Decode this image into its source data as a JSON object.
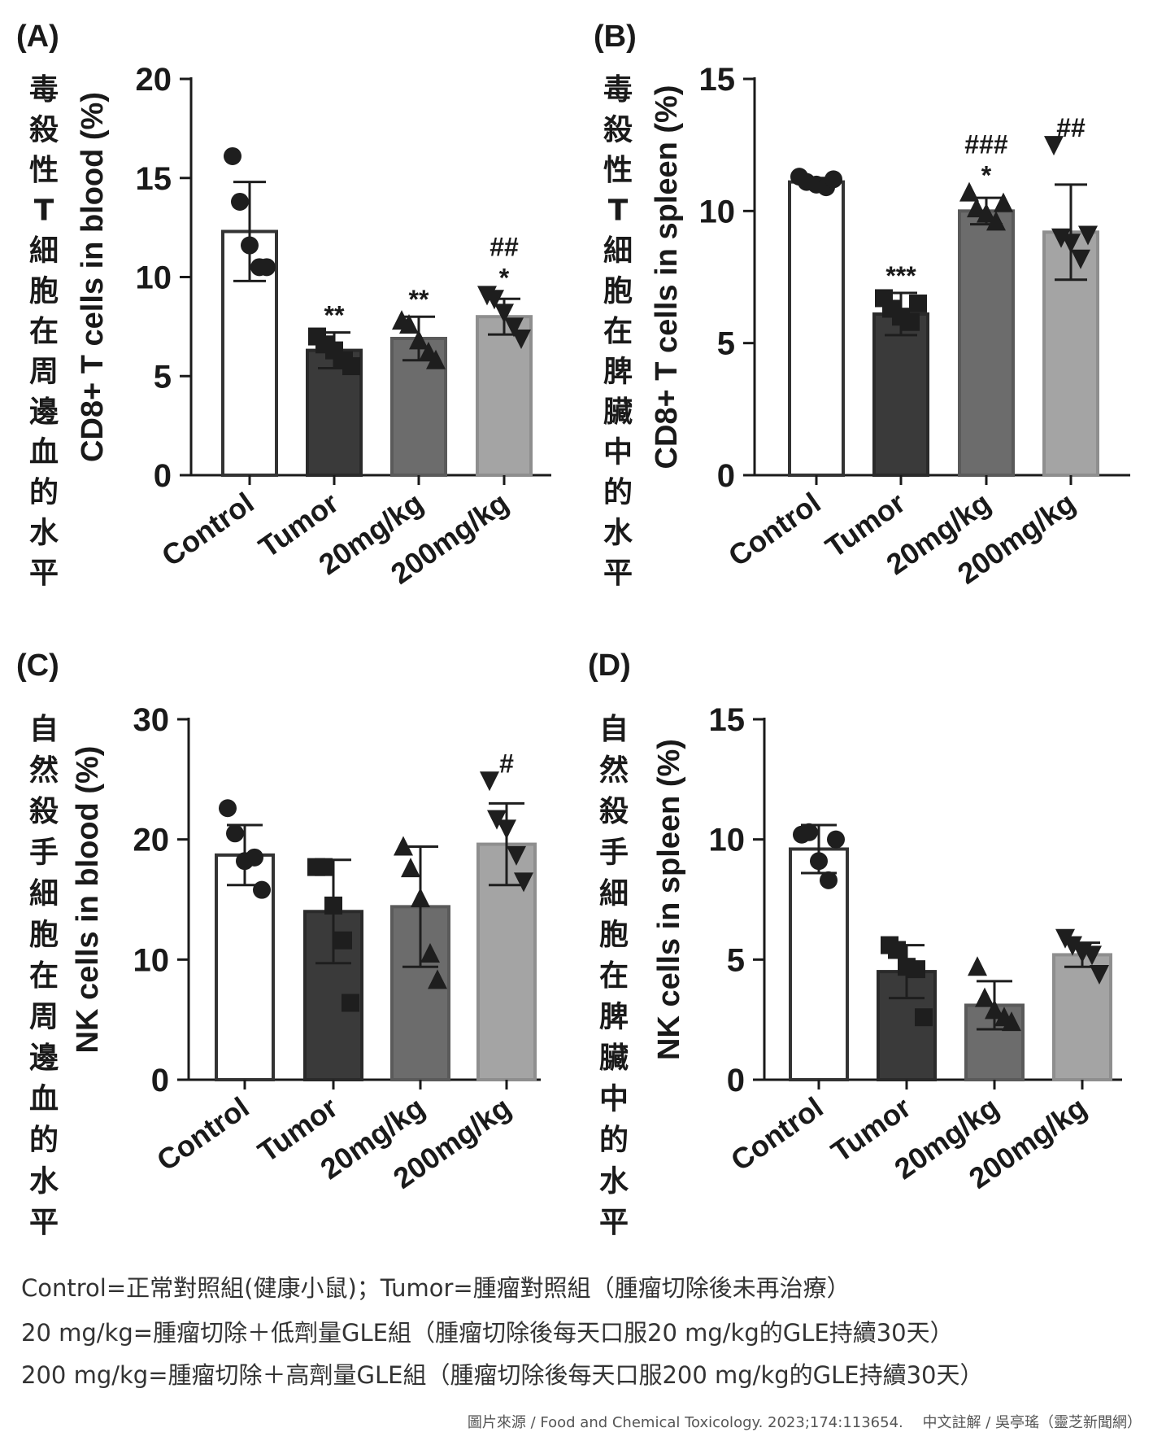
{
  "chart_data": [
    {
      "type": "bar",
      "panel": "(A)",
      "side_caption": "毒殺性T細胞在周邊血的水平",
      "categories": [
        "Control",
        "Tumor",
        "20mg/kg",
        "200mg/kg"
      ],
      "ylabel": "CD8+ T cells in blood (%)",
      "ylim": [
        0,
        20
      ],
      "yticks": [
        0,
        5,
        10,
        15,
        20
      ],
      "values": [
        12.3,
        6.3,
        6.9,
        8.0
      ],
      "errors": [
        2.5,
        0.9,
        1.1,
        0.9
      ],
      "points": [
        [
          16.1,
          13.8,
          11.6,
          10.5,
          10.5
        ],
        [
          7.0,
          6.6,
          6.3,
          5.8,
          5.5
        ],
        [
          7.8,
          7.6,
          6.8,
          6.2,
          5.8
        ],
        [
          9.1,
          8.9,
          8.2,
          7.5,
          6.9
        ]
      ],
      "annotations": [
        {
          "category": "Tumor",
          "marks": [
            "**"
          ]
        },
        {
          "category": "20mg/kg",
          "marks": [
            "**"
          ]
        },
        {
          "category": "200mg/kg",
          "marks": [
            "##",
            "*"
          ]
        }
      ]
    },
    {
      "type": "bar",
      "panel": "(B)",
      "side_caption": "毒殺性T細胞在脾臟中的水平",
      "categories": [
        "Control",
        "Tumor",
        "20mg/kg",
        "200mg/kg"
      ],
      "ylabel": "CD8+ T cells in spleen (%)",
      "ylim": [
        0,
        15
      ],
      "yticks": [
        0,
        5,
        10,
        15
      ],
      "values": [
        11.1,
        6.1,
        10.0,
        9.2
      ],
      "errors": [
        0.15,
        0.8,
        0.5,
        1.8
      ],
      "points": [
        [
          11.3,
          11.1,
          11.0,
          10.9,
          11.2
        ],
        [
          6.7,
          6.3,
          6.0,
          5.8,
          6.5
        ],
        [
          10.7,
          10.1,
          9.9,
          9.6,
          10.3
        ],
        [
          12.5,
          9.0,
          8.8,
          8.2,
          9.1
        ]
      ],
      "annotations": [
        {
          "category": "Tumor",
          "marks": [
            "***"
          ]
        },
        {
          "category": "20mg/kg",
          "marks": [
            "###",
            "*"
          ]
        },
        {
          "category": "200mg/kg",
          "marks": [
            "##"
          ]
        }
      ]
    },
    {
      "type": "bar",
      "panel": "(C)",
      "side_caption": "自然殺手細胞在周邊血的水平",
      "categories": [
        "Control",
        "Tumor",
        "20mg/kg",
        "200mg/kg"
      ],
      "ylabel": "NK cells in blood (%)",
      "ylim": [
        0,
        30
      ],
      "yticks": [
        0,
        10,
        20,
        30
      ],
      "values": [
        18.7,
        14.0,
        14.4,
        19.6
      ],
      "errors": [
        2.5,
        4.3,
        5.0,
        3.4
      ],
      "points": [
        [
          22.6,
          20.5,
          18.2,
          18.5,
          15.8
        ],
        [
          17.7,
          17.7,
          14.5,
          11.6,
          6.4
        ],
        [
          19.4,
          17.6,
          15.1,
          10.5,
          8.3
        ],
        [
          24.9,
          21.7,
          20.9,
          18.7,
          16.5
        ]
      ],
      "annotations": [
        {
          "category": "200mg/kg",
          "marks": [
            "#"
          ]
        }
      ]
    },
    {
      "type": "bar",
      "panel": "(D)",
      "side_caption": "自然殺手細胞在脾臟中的水平",
      "categories": [
        "Control",
        "Tumor",
        "20mg/kg",
        "200mg/kg"
      ],
      "ylabel": "NK cells in spleen (%)",
      "ylim": [
        0,
        15
      ],
      "yticks": [
        0,
        5,
        10,
        15
      ],
      "values": [
        9.6,
        4.5,
        3.1,
        5.2
      ],
      "errors": [
        1.0,
        1.1,
        1.0,
        0.5
      ],
      "points": [
        [
          10.2,
          10.3,
          9.1,
          8.3,
          10.0
        ],
        [
          5.6,
          5.4,
          4.7,
          4.6,
          2.6
        ],
        [
          4.7,
          3.4,
          2.9,
          2.6,
          2.4
        ],
        [
          5.9,
          5.6,
          5.3,
          5.2,
          4.4
        ]
      ],
      "annotations": []
    }
  ],
  "notes": {
    "line1": "Control=正常對照組(健康小鼠)；Tumor=腫瘤對照組（腫瘤切除後未再治療）",
    "line2": "20 mg/kg=腫瘤切除＋低劑量GLE組（腫瘤切除後每天口服20 mg/kg的GLE持續30天）",
    "line3": "200 mg/kg=腫瘤切除＋高劑量GLE組（腫瘤切除後每天口服200 mg/kg的GLE持續30天）"
  },
  "source": "圖片來源 / Food and Chemical Toxicology. 2023;174:113654.　 中文註解 / 吳亭瑤（靈芝新聞網）",
  "colors": {
    "control_fill": "#ffffff",
    "tumor_fill": "#3a3a3a",
    "low_dose_fill": "#6c6c6c",
    "high_dose_fill": "#a4a4a4",
    "axis": "#1a1a1a"
  }
}
